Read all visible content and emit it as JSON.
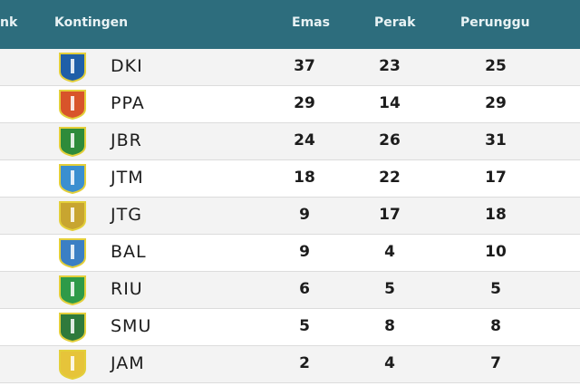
{
  "header": {
    "rank": "nk",
    "kontingen": "Kontingen",
    "emas": "Emas",
    "perak": "Perak",
    "perunggu": "Perunggu"
  },
  "rows": [
    {
      "code": "DKI",
      "emas": "37",
      "perak": "23",
      "perunggu": "25",
      "logo_color": "#1f5fa8"
    },
    {
      "code": "PPA",
      "emas": "29",
      "perak": "14",
      "perunggu": "29",
      "logo_color": "#d8542a"
    },
    {
      "code": "JBR",
      "emas": "24",
      "perak": "26",
      "perunggu": "31",
      "logo_color": "#2e8b3a"
    },
    {
      "code": "JTM",
      "emas": "18",
      "perak": "22",
      "perunggu": "17",
      "logo_color": "#3a8fd0"
    },
    {
      "code": "JTG",
      "emas": "9",
      "perak": "17",
      "perunggu": "18",
      "logo_color": "#c8a530"
    },
    {
      "code": "BAL",
      "emas": "9",
      "perak": "4",
      "perunggu": "10",
      "logo_color": "#3b7fc4"
    },
    {
      "code": "RIU",
      "emas": "6",
      "perak": "5",
      "perunggu": "5",
      "logo_color": "#2e9a48"
    },
    {
      "code": "SMU",
      "emas": "5",
      "perak": "8",
      "perunggu": "8",
      "logo_color": "#2f7a3c"
    },
    {
      "code": "JAM",
      "emas": "2",
      "perak": "4",
      "perunggu": "7",
      "logo_color": "#e6c43a"
    }
  ]
}
